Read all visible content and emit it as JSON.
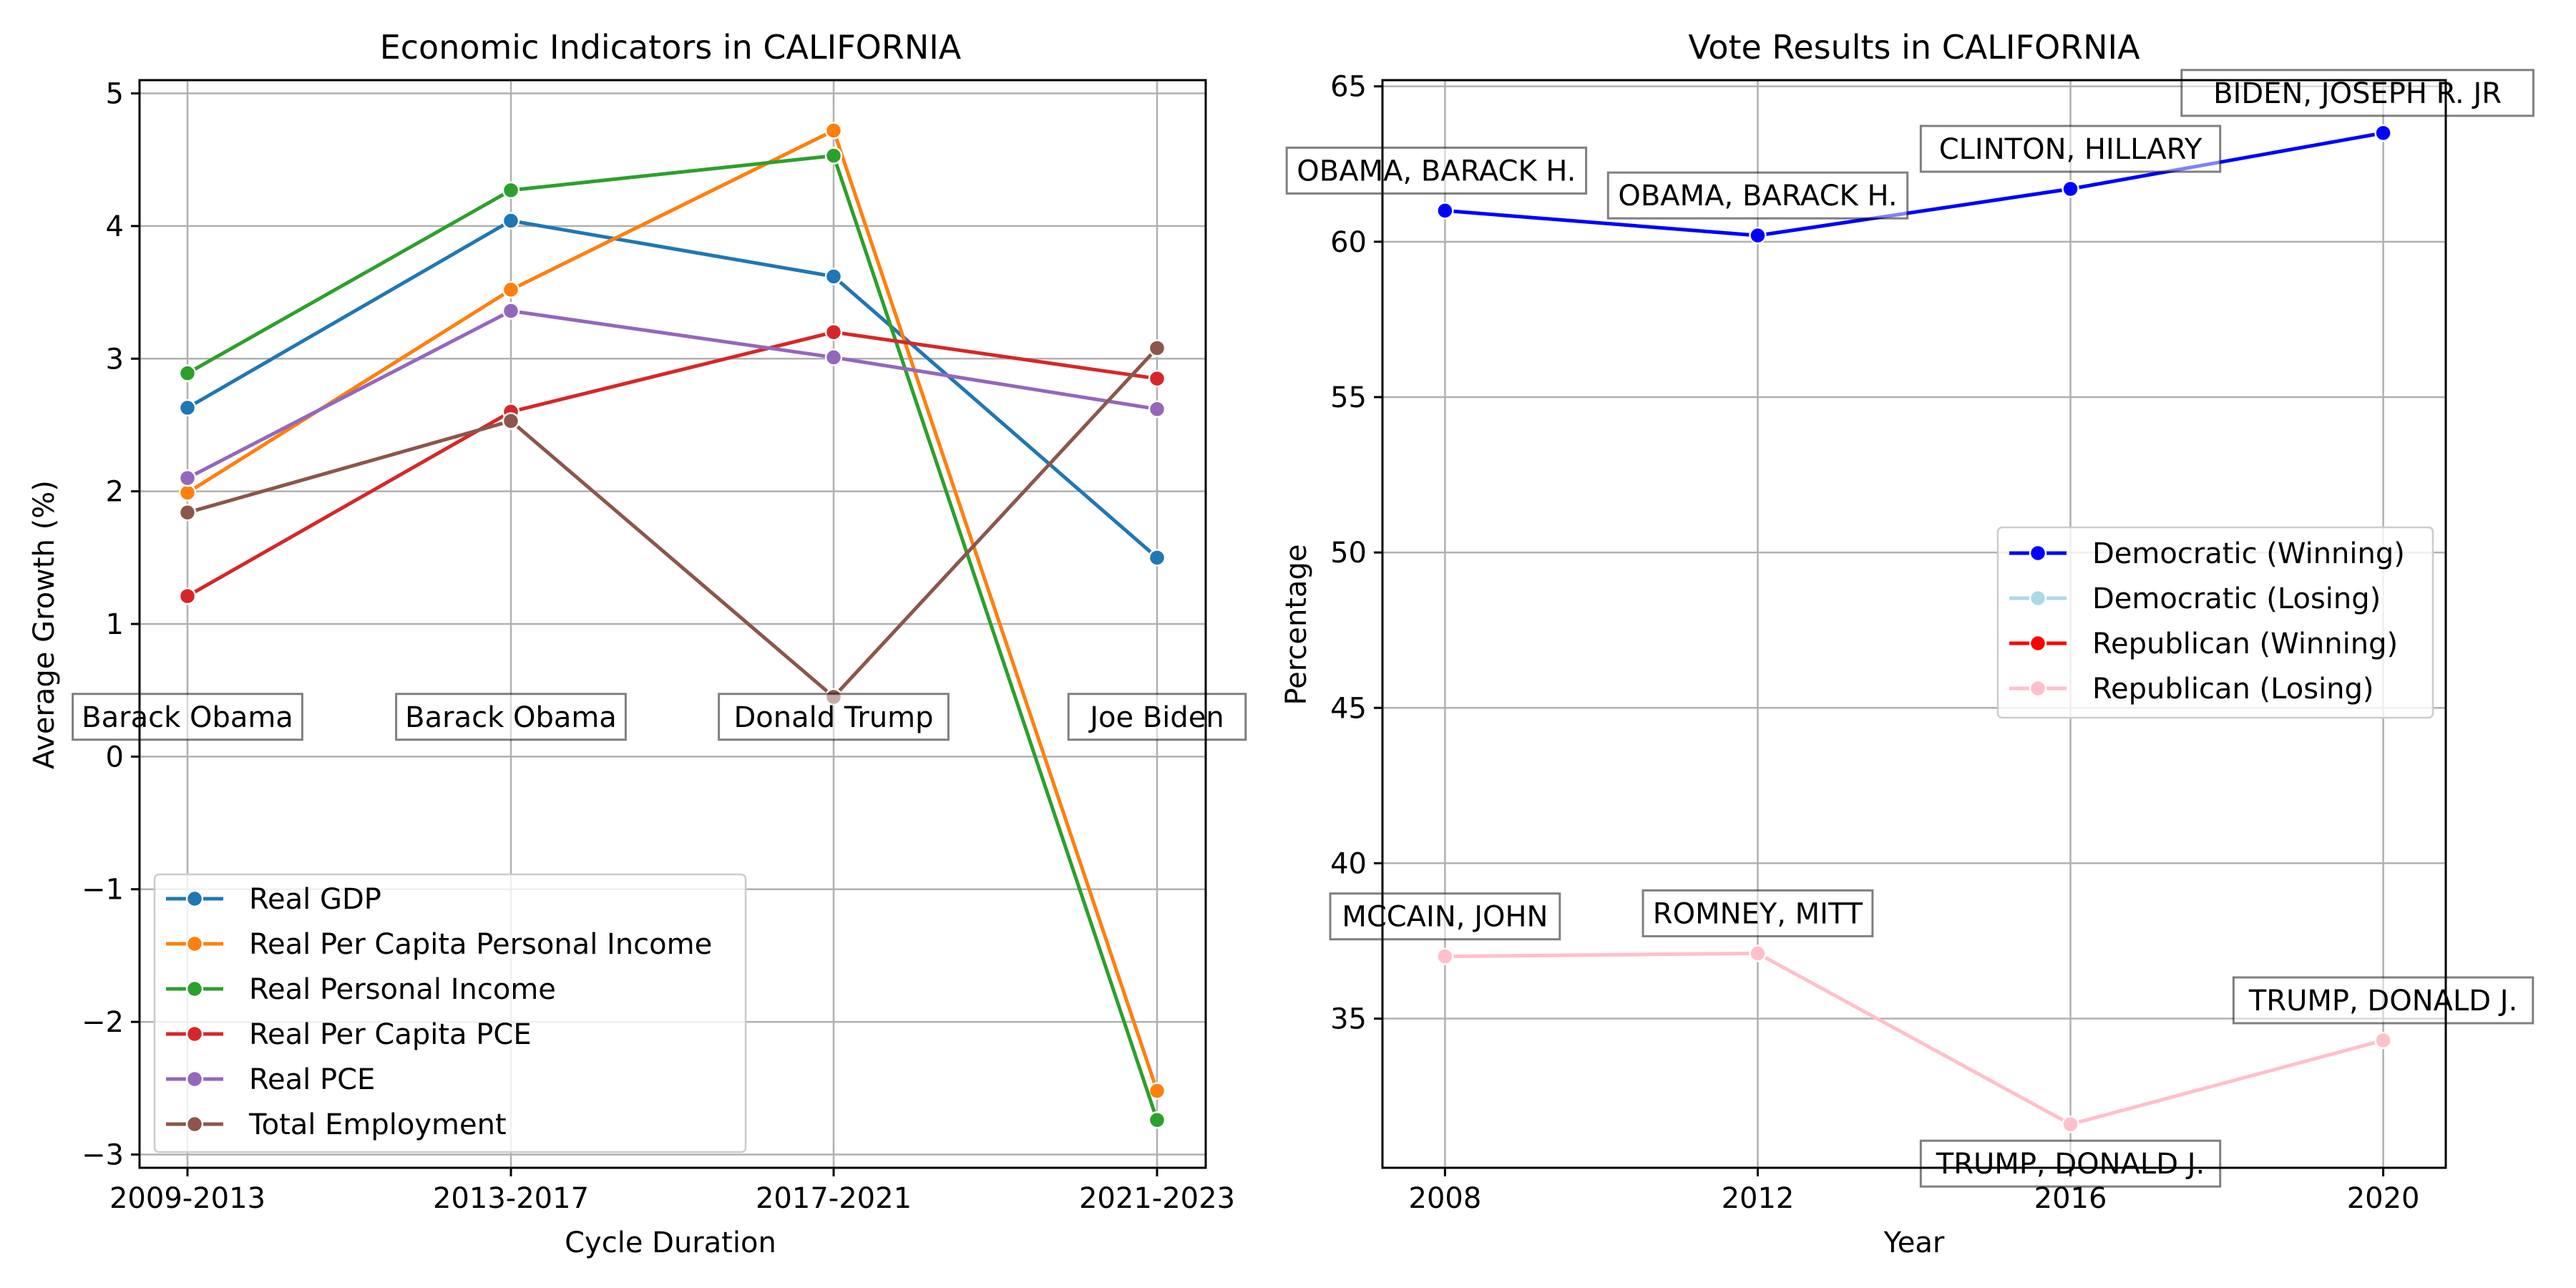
{
  "chart_data": [
    {
      "type": "line",
      "title": "Economic Indicators in CALIFORNIA",
      "xlabel": "Cycle Duration",
      "ylabel": "Average Growth (%)",
      "categories": [
        "2009-2013",
        "2013-2017",
        "2017-2021",
        "2021-2023"
      ],
      "ylim": [
        -3.1,
        5.1
      ],
      "yticks": [
        -3,
        -2,
        -1,
        0,
        1,
        2,
        3,
        4,
        5
      ],
      "ytick_labels": [
        "−3",
        "−2",
        "−1",
        "0",
        "1",
        "2",
        "3",
        "4",
        "5"
      ],
      "grid": true,
      "legend_position": "lower-left",
      "series": [
        {
          "name": "Real GDP",
          "color": "#1f77b4",
          "values": [
            2.63,
            4.04,
            3.62,
            1.5
          ]
        },
        {
          "name": "Real Per Capita Personal Income",
          "color": "#ff7f0e",
          "values": [
            1.99,
            3.52,
            4.72,
            -2.52
          ]
        },
        {
          "name": "Real Personal Income",
          "color": "#2ca02c",
          "values": [
            2.89,
            4.27,
            4.53,
            -2.74
          ]
        },
        {
          "name": "Real Per Capita PCE",
          "color": "#d62728",
          "values": [
            1.21,
            2.6,
            3.2,
            2.85
          ]
        },
        {
          "name": "Real PCE",
          "color": "#9467bd",
          "values": [
            2.1,
            3.36,
            3.01,
            2.62
          ]
        },
        {
          "name": "Total Employment",
          "color": "#8c564b",
          "values": [
            1.84,
            2.53,
            0.45,
            3.08
          ]
        }
      ],
      "annotations": [
        {
          "text": "Barack Obama",
          "x": "2009-2013",
          "y": 0.3
        },
        {
          "text": "Barack Obama",
          "x": "2013-2017",
          "y": 0.3
        },
        {
          "text": "Donald Trump",
          "x": "2017-2021",
          "y": 0.3
        },
        {
          "text": "Joe Biden",
          "x": "2021-2023",
          "y": 0.3
        }
      ]
    },
    {
      "type": "line",
      "title": "Vote Results in CALIFORNIA",
      "xlabel": "Year",
      "ylabel": "Percentage",
      "xlim": [
        2007.2,
        2020.8
      ],
      "ylim": [
        30.2,
        65.2
      ],
      "xticks": [
        2008,
        2012,
        2016,
        2020
      ],
      "yticks": [
        35,
        40,
        45,
        50,
        55,
        60,
        65
      ],
      "grid": true,
      "legend_position": "center-right",
      "legend": [
        {
          "name": "Democratic (Winning)",
          "color": "#0000ff"
        },
        {
          "name": "Democratic (Losing)",
          "color": "#add8e6"
        },
        {
          "name": "Republican (Winning)",
          "color": "#ff0000"
        },
        {
          "name": "Republican (Losing)",
          "color": "#ffc0cb"
        }
      ],
      "series": [
        {
          "name": "Democratic (Winning)",
          "color": "#0000ff",
          "x": [
            2008,
            2012,
            2016,
            2020
          ],
          "y": [
            61.0,
            60.2,
            61.7,
            63.5
          ]
        },
        {
          "name": "Republican (Losing)",
          "color": "#ffc0cb",
          "x": [
            2008,
            2012,
            2016,
            2020
          ],
          "y": [
            37.0,
            37.1,
            31.6,
            34.3
          ]
        }
      ],
      "annotations": [
        {
          "text": "OBAMA, BARACK H.",
          "x": 2008,
          "y": 61.0
        },
        {
          "text": "OBAMA, BARACK H.",
          "x": 2012,
          "y": 60.2
        },
        {
          "text": "CLINTON, HILLARY",
          "x": 2016,
          "y": 61.7
        },
        {
          "text": "BIDEN, JOSEPH R. JR",
          "x": 2020,
          "y": 63.5
        },
        {
          "text": "MCCAIN, JOHN",
          "x": 2008,
          "y": 37.0
        },
        {
          "text": "ROMNEY, MITT",
          "x": 2012,
          "y": 37.1
        },
        {
          "text": "TRUMP, DONALD J.",
          "x": 2016,
          "y": 31.6
        },
        {
          "text": "TRUMP, DONALD J.",
          "x": 2020,
          "y": 34.3
        }
      ]
    }
  ]
}
